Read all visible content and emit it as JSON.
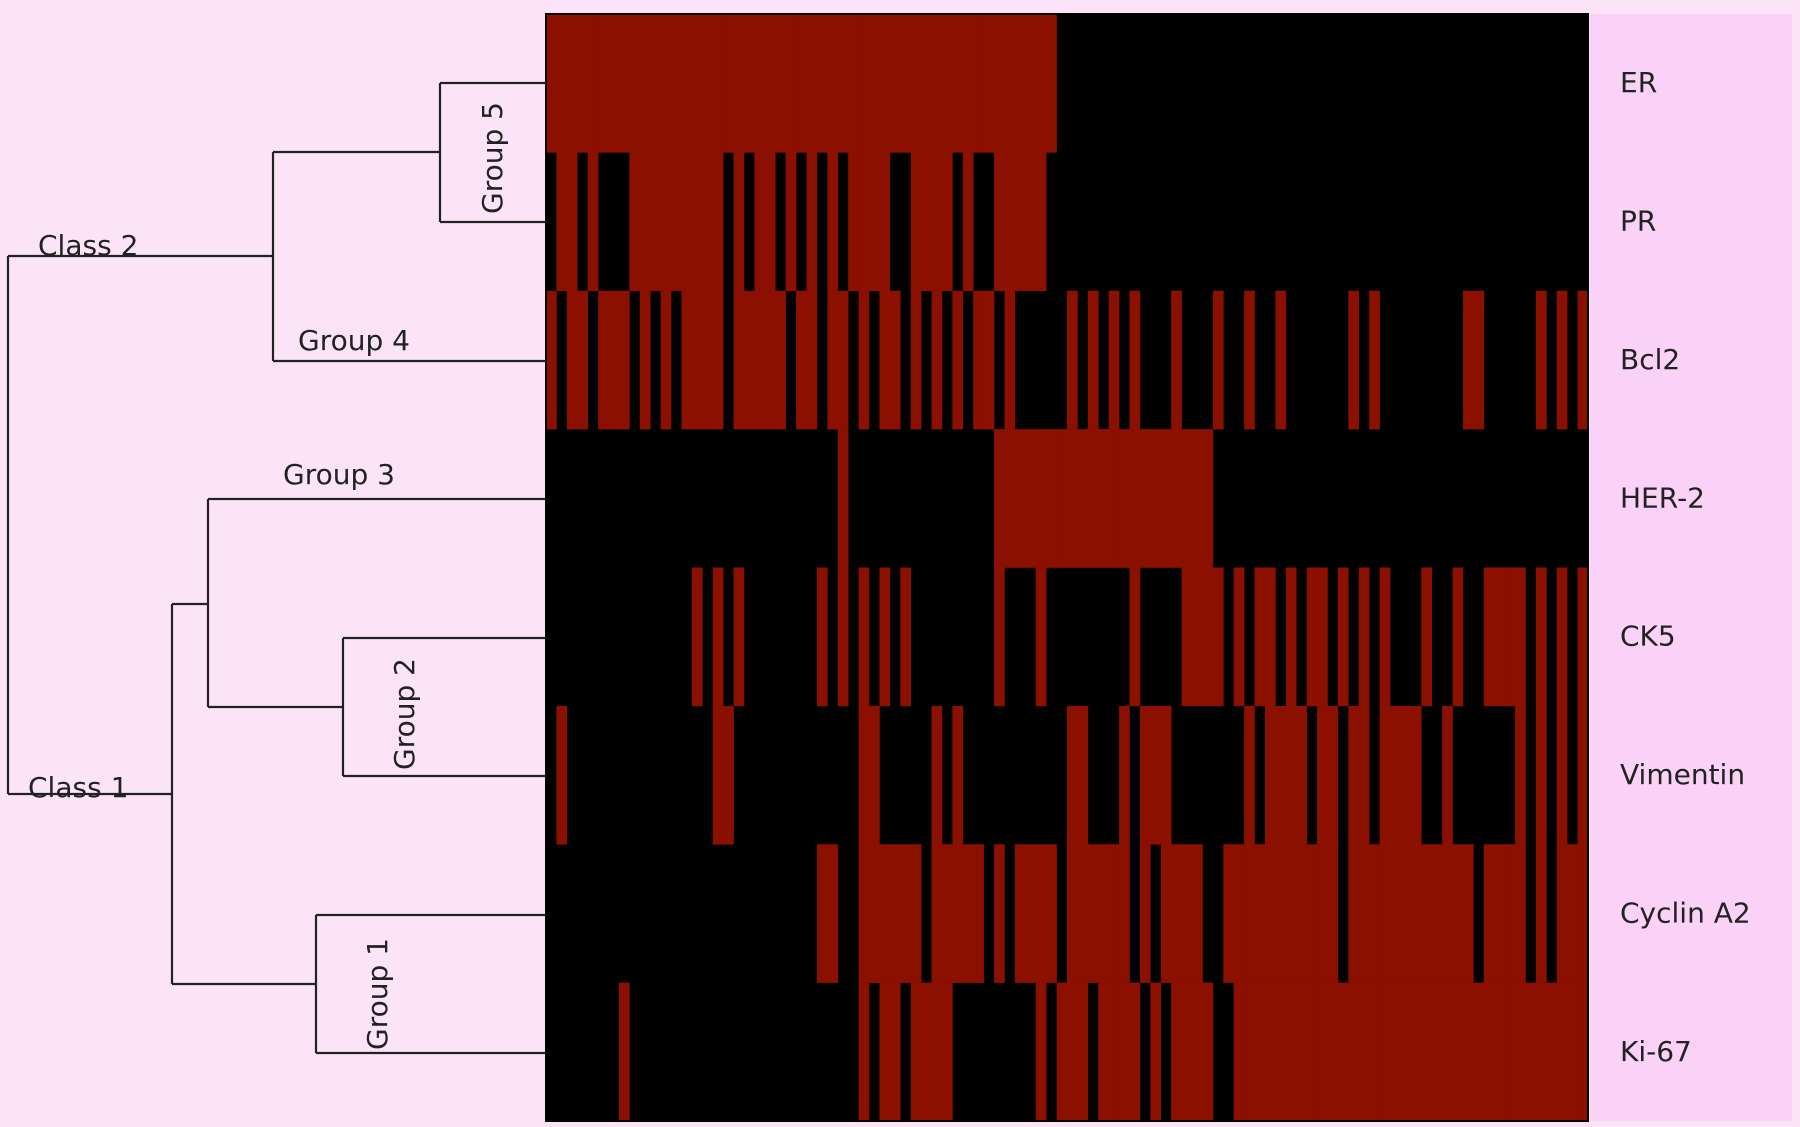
{
  "chart_data": {
    "type": "heatmap",
    "title": "",
    "xlabel": "",
    "ylabel": "",
    "rows": [
      "ER",
      "PR",
      "Bcl2",
      "HER-2",
      "CK5",
      "Vimentin",
      "Cyclin A2",
      "Ki-67"
    ],
    "values_legend": "1 = positive (red), 0 = negative (black)",
    "column_count": 100,
    "matrix": [
      [
        1,
        1,
        1,
        1,
        1,
        1,
        1,
        1,
        1,
        1,
        1,
        1,
        1,
        1,
        1,
        1,
        1,
        1,
        1,
        1,
        1,
        1,
        1,
        1,
        1,
        1,
        1,
        1,
        1,
        1,
        1,
        1,
        1,
        1,
        1,
        1,
        1,
        1,
        1,
        1,
        1,
        1,
        1,
        1,
        1,
        1,
        1,
        1,
        1,
        0,
        0,
        0,
        0,
        0,
        0,
        0,
        0,
        0,
        0,
        0,
        0,
        0,
        0,
        0,
        0,
        0,
        0,
        0,
        0,
        0,
        0,
        0,
        0,
        0,
        0,
        0,
        0,
        0,
        0,
        0,
        0,
        0,
        0,
        0,
        0,
        0,
        0,
        0,
        0,
        0,
        0,
        0,
        0,
        0,
        0,
        0,
        0,
        0,
        0,
        0
      ],
      [
        0,
        1,
        1,
        0,
        1,
        0,
        0,
        0,
        1,
        1,
        1,
        1,
        1,
        1,
        1,
        1,
        1,
        0,
        1,
        0,
        1,
        1,
        0,
        1,
        0,
        1,
        0,
        1,
        0,
        1,
        1,
        1,
        1,
        0,
        0,
        1,
        1,
        1,
        1,
        0,
        1,
        0,
        0,
        1,
        1,
        1,
        1,
        1,
        0,
        0,
        0,
        0,
        0,
        0,
        0,
        0,
        0,
        0,
        0,
        0,
        0,
        0,
        0,
        0,
        0,
        0,
        0,
        0,
        0,
        0,
        0,
        0,
        0,
        0,
        0,
        0,
        0,
        0,
        0,
        0,
        0,
        0,
        0,
        0,
        0,
        0,
        0,
        0,
        0,
        0,
        0,
        0,
        0,
        0,
        0,
        0,
        0,
        0,
        0,
        0
      ],
      [
        1,
        0,
        1,
        1,
        0,
        1,
        1,
        1,
        0,
        1,
        0,
        1,
        0,
        1,
        1,
        1,
        1,
        0,
        1,
        1,
        1,
        1,
        1,
        0,
        1,
        1,
        0,
        1,
        1,
        0,
        1,
        0,
        1,
        1,
        0,
        1,
        0,
        1,
        0,
        1,
        0,
        1,
        1,
        0,
        1,
        0,
        0,
        0,
        0,
        0,
        1,
        0,
        1,
        0,
        1,
        0,
        1,
        0,
        0,
        0,
        1,
        0,
        0,
        0,
        1,
        0,
        0,
        1,
        0,
        0,
        1,
        0,
        0,
        0,
        0,
        0,
        0,
        1,
        0,
        1,
        0,
        0,
        0,
        0,
        0,
        0,
        0,
        0,
        1,
        1,
        0,
        0,
        0,
        0,
        0,
        1,
        0,
        1,
        0,
        1
      ],
      [
        0,
        0,
        0,
        0,
        0,
        0,
        0,
        0,
        0,
        0,
        0,
        0,
        0,
        0,
        0,
        0,
        0,
        0,
        0,
        0,
        0,
        0,
        0,
        0,
        0,
        0,
        0,
        0,
        1,
        0,
        0,
        0,
        0,
        0,
        0,
        0,
        0,
        0,
        0,
        0,
        0,
        0,
        0,
        1,
        1,
        1,
        1,
        1,
        1,
        1,
        1,
        1,
        1,
        1,
        1,
        1,
        1,
        1,
        1,
        1,
        1,
        1,
        1,
        1,
        0,
        0,
        0,
        0,
        0,
        0,
        0,
        0,
        0,
        0,
        0,
        0,
        0,
        0,
        0,
        0,
        0,
        0,
        0,
        0,
        0,
        0,
        0,
        0,
        0,
        0,
        0,
        0,
        0,
        0,
        0,
        0,
        0,
        0,
        0,
        0
      ],
      [
        0,
        0,
        0,
        0,
        0,
        0,
        0,
        0,
        0,
        0,
        0,
        0,
        0,
        0,
        1,
        0,
        1,
        0,
        1,
        0,
        0,
        0,
        0,
        0,
        0,
        0,
        1,
        0,
        1,
        0,
        1,
        0,
        1,
        0,
        1,
        0,
        0,
        0,
        0,
        0,
        0,
        0,
        0,
        1,
        0,
        0,
        0,
        1,
        0,
        0,
        0,
        0,
        0,
        0,
        0,
        0,
        1,
        0,
        0,
        0,
        0,
        1,
        1,
        1,
        1,
        0,
        1,
        0,
        1,
        1,
        0,
        1,
        0,
        1,
        1,
        0,
        1,
        0,
        1,
        0,
        1,
        0,
        0,
        0,
        1,
        0,
        0,
        1,
        0,
        0,
        1,
        1,
        1,
        1,
        0,
        1,
        0,
        1,
        0,
        1
      ],
      [
        0,
        1,
        0,
        0,
        0,
        0,
        0,
        0,
        0,
        0,
        0,
        0,
        0,
        0,
        0,
        0,
        1,
        1,
        0,
        0,
        0,
        0,
        0,
        0,
        0,
        0,
        0,
        0,
        0,
        0,
        1,
        1,
        0,
        0,
        0,
        0,
        0,
        1,
        0,
        1,
        0,
        0,
        0,
        0,
        0,
        0,
        0,
        0,
        0,
        0,
        1,
        1,
        0,
        0,
        0,
        1,
        0,
        1,
        1,
        1,
        0,
        0,
        0,
        0,
        0,
        0,
        0,
        1,
        0,
        1,
        1,
        1,
        1,
        0,
        1,
        1,
        0,
        1,
        1,
        0,
        1,
        1,
        1,
        1,
        0,
        0,
        1,
        0,
        0,
        0,
        0,
        0,
        0,
        1,
        0,
        1,
        0,
        1,
        0,
        1
      ],
      [
        0,
        0,
        0,
        0,
        0,
        0,
        0,
        0,
        0,
        0,
        0,
        0,
        0,
        0,
        0,
        0,
        0,
        0,
        0,
        0,
        0,
        0,
        0,
        0,
        0,
        0,
        1,
        1,
        0,
        0,
        1,
        1,
        1,
        1,
        1,
        1,
        0,
        1,
        1,
        1,
        1,
        1,
        0,
        1,
        0,
        1,
        1,
        1,
        1,
        0,
        1,
        1,
        1,
        1,
        1,
        1,
        0,
        1,
        0,
        1,
        1,
        1,
        1,
        0,
        0,
        1,
        1,
        1,
        1,
        1,
        1,
        1,
        1,
        1,
        1,
        1,
        0,
        1,
        1,
        1,
        1,
        1,
        1,
        1,
        1,
        1,
        1,
        1,
        1,
        0,
        1,
        1,
        1,
        1,
        0,
        1,
        0,
        1,
        1,
        1
      ],
      [
        0,
        0,
        0,
        0,
        0,
        0,
        0,
        1,
        0,
        0,
        0,
        0,
        0,
        0,
        0,
        0,
        0,
        0,
        0,
        0,
        0,
        0,
        0,
        0,
        0,
        0,
        0,
        0,
        0,
        0,
        1,
        0,
        1,
        1,
        0,
        1,
        1,
        1,
        1,
        0,
        0,
        0,
        0,
        0,
        0,
        0,
        0,
        1,
        0,
        1,
        1,
        1,
        0,
        1,
        1,
        1,
        1,
        0,
        1,
        0,
        1,
        1,
        1,
        1,
        0,
        0,
        1,
        1,
        1,
        1,
        1,
        1,
        1,
        1,
        1,
        1,
        1,
        1,
        1,
        1,
        1,
        1,
        1,
        1,
        1,
        1,
        1,
        1,
        1,
        1,
        1,
        1,
        1,
        1,
        1,
        1,
        1,
        1,
        1,
        1
      ]
    ],
    "dendrogram": {
      "classes": [
        "Class 1",
        "Class 2"
      ],
      "groups": [
        "Group 1",
        "Group 2",
        "Group 3",
        "Group 4",
        "Group 5"
      ]
    },
    "colors": {
      "positive": "#8B1000",
      "negative": "#000000",
      "background": "#FCE4F8",
      "label_panel": "#FAD1F7",
      "line": "#222222"
    }
  }
}
